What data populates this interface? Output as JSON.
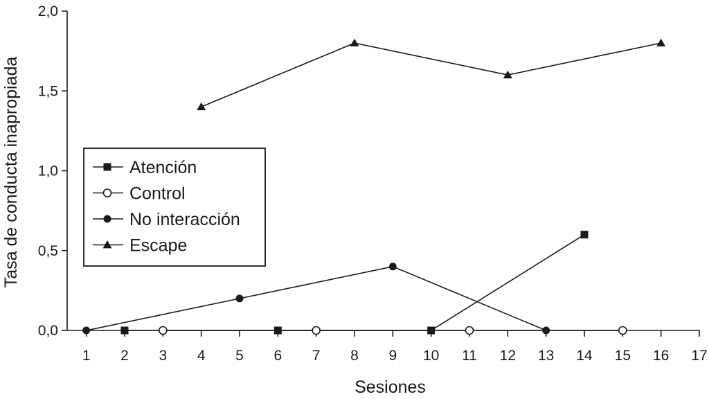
{
  "chart_data": {
    "type": "line",
    "xlabel": "Sesiones",
    "ylabel": "Tasa de conducta inapropiada",
    "xlim": [
      0.5,
      17
    ],
    "ylim": [
      0,
      2
    ],
    "x_ticks": [
      1,
      2,
      3,
      4,
      5,
      6,
      7,
      8,
      9,
      10,
      11,
      12,
      13,
      14,
      15,
      16,
      17
    ],
    "x_tick_labels": [
      "1",
      "2",
      "3",
      "4",
      "5",
      "6",
      "7",
      "8",
      "9",
      "10",
      "11",
      "12",
      "13",
      "14",
      "15",
      "16",
      "17"
    ],
    "y_ticks": [
      0,
      0.5,
      1,
      1.5,
      2
    ],
    "y_tick_labels": [
      "0,0",
      "0,5",
      "1,0",
      "1,5",
      "2,0"
    ],
    "grid": false,
    "legend_position": "left-middle",
    "series": [
      {
        "name": "Atención",
        "marker": "square-filled",
        "x": [
          2,
          6,
          10,
          14
        ],
        "y": [
          0,
          0,
          0,
          0.6
        ]
      },
      {
        "name": "Control",
        "marker": "circle-open",
        "x": [
          3,
          7,
          11,
          15
        ],
        "y": [
          0,
          0,
          0,
          0
        ]
      },
      {
        "name": "No interacción",
        "marker": "circle-filled",
        "x": [
          1,
          5,
          9,
          13
        ],
        "y": [
          0,
          0.2,
          0.4,
          0
        ]
      },
      {
        "name": "Escape",
        "marker": "triangle-filled",
        "x": [
          4,
          8,
          12,
          16
        ],
        "y": [
          1.4,
          1.8,
          1.6,
          1.8
        ]
      }
    ],
    "colors": {
      "line": "#1a1a1a",
      "background": "#ffffff"
    }
  }
}
